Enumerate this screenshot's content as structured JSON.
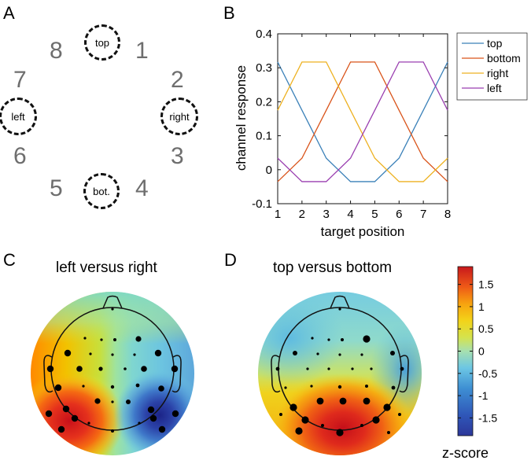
{
  "panels": {
    "a": {
      "letter": "A"
    },
    "b": {
      "letter": "B"
    },
    "c": {
      "letter": "C",
      "title": "left versus right"
    },
    "d": {
      "letter": "D",
      "title": "top versus bottom"
    }
  },
  "ring": {
    "numbers": [
      "1",
      "2",
      "3",
      "4",
      "5",
      "6",
      "7",
      "8"
    ],
    "targets": {
      "top": "top",
      "right": "right",
      "bottom": "bot.",
      "left": "left"
    }
  },
  "chart_data": [
    {
      "type": "line",
      "x": [
        1,
        2,
        3,
        4,
        5,
        6,
        7,
        8
      ],
      "series": [
        {
          "name": "top",
          "color": "#3a80b8",
          "values": [
            0.317,
            0.175,
            0.034,
            -0.035,
            -0.035,
            0.034,
            0.175,
            0.317
          ]
        },
        {
          "name": "bottom",
          "color": "#d95319",
          "values": [
            -0.035,
            0.034,
            0.175,
            0.317,
            0.317,
            0.175,
            0.034,
            -0.035
          ]
        },
        {
          "name": "right",
          "color": "#edb120",
          "values": [
            0.175,
            0.317,
            0.317,
            0.175,
            0.034,
            -0.035,
            -0.035,
            0.034
          ]
        },
        {
          "name": "left",
          "color": "#9a3fb0",
          "values": [
            0.034,
            -0.035,
            -0.035,
            0.034,
            0.175,
            0.317,
            0.317,
            0.175
          ]
        }
      ],
      "xlabel": "target position",
      "ylabel": "channel response",
      "xlim": [
        1,
        8
      ],
      "ylim": [
        -0.1,
        0.4
      ],
      "xticks": [
        "1",
        "2",
        "3",
        "4",
        "5",
        "6",
        "7",
        "8"
      ],
      "yticks": [
        "-0.1",
        "0",
        "0.1",
        "0.2",
        "0.3",
        "0.4"
      ],
      "legend": "right-outside-top"
    },
    {
      "type": "heatmap",
      "title": "left versus right",
      "colorbar": {
        "label": "z-score",
        "range": [
          -1.9,
          1.9
        ],
        "ticks": [
          "1.5",
          "1",
          "0.5",
          "0",
          "-0.5",
          "-1",
          "-1.5"
        ]
      }
    },
    {
      "type": "heatmap",
      "title": "top versus bottom",
      "colorbar": {
        "label": "z-score",
        "range": [
          -1.9,
          1.9
        ],
        "ticks": [
          "1.5",
          "1",
          "0.5",
          "0",
          "-0.5",
          "-1",
          "-1.5"
        ]
      }
    }
  ],
  "colorbar": {
    "label": "z-score",
    "ticks": [
      "1.5",
      "1",
      "0.5",
      "0",
      "-0.5",
      "-1",
      "-1.5"
    ]
  },
  "colors": {
    "ring_number": "#6e6e6e",
    "jet_hot": "#d7191c",
    "jet_cold": "#2c3799"
  }
}
